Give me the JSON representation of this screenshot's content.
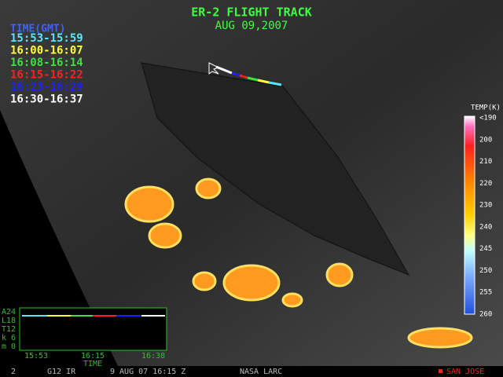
{
  "header": {
    "title": "ER-2 FLIGHT TRACK",
    "date": "AUG 09,2007"
  },
  "legend": {
    "title": "TIME(GMT)",
    "entries": [
      {
        "label": "15:53-15:59",
        "color": "#55e8ff"
      },
      {
        "label": "16:00-16:07",
        "color": "#ffff40"
      },
      {
        "label": "16:08-16:14",
        "color": "#40e040"
      },
      {
        "label": "16:15-16:22",
        "color": "#ff2020"
      },
      {
        "label": "16:23-16:29",
        "color": "#2020ff"
      },
      {
        "label": "16:30-16:37",
        "color": "#ffffff"
      }
    ]
  },
  "colorbar": {
    "title": "TEMP(K)",
    "labels": [
      "<190",
      "200",
      "210",
      "220",
      "230",
      "240",
      "245",
      "250",
      "255",
      "260"
    ]
  },
  "altitude_plot": {
    "y_labels": [
      "A24",
      "L18",
      "T12",
      "k 6",
      "m 0"
    ],
    "x_labels": [
      "15:53",
      "16:15",
      "16:38"
    ],
    "x_title": "TIME"
  },
  "footer": {
    "frame": "2",
    "channel": "G12 IR",
    "datetime": "9 AUG 07 16:15 Z",
    "source": "NASA LARC",
    "marker": "SAN JOSE"
  }
}
